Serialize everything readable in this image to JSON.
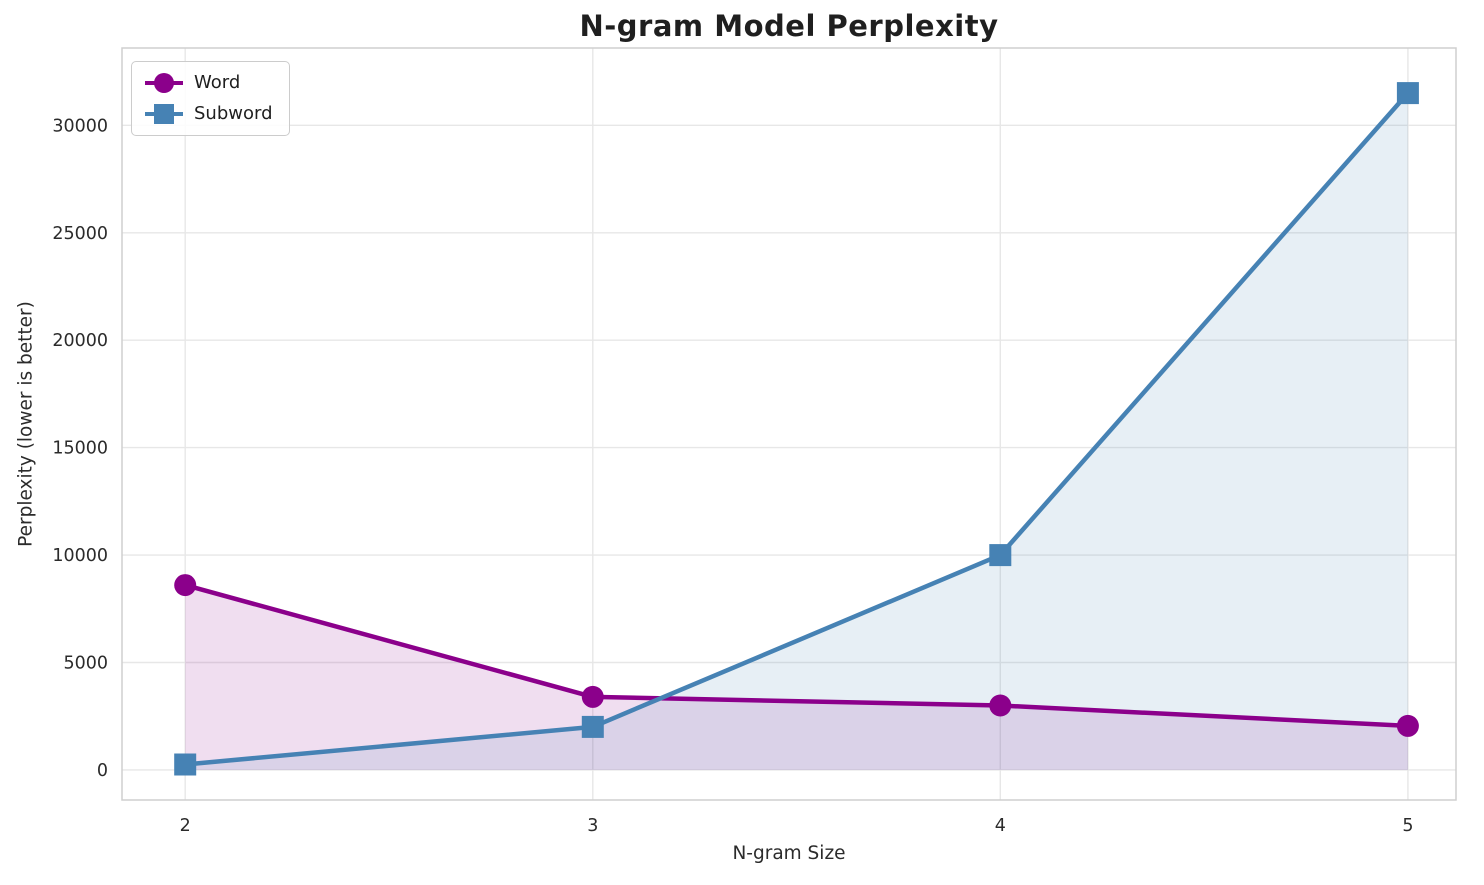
{
  "chart_data": {
    "type": "line",
    "title": "N-gram Model Perplexity",
    "xlabel": "N-gram Size",
    "ylabel": "Perplexity (lower is better)",
    "x": [
      2,
      3,
      4,
      5
    ],
    "series": [
      {
        "name": "Word",
        "values": [
          8600,
          3400,
          3000,
          2050
        ],
        "color": "#8B008B",
        "marker": "circle",
        "fill_opacity": 0.13
      },
      {
        "name": "Subword",
        "values": [
          250,
          2000,
          10000,
          31500
        ],
        "color": "#4682B4",
        "marker": "square",
        "fill_opacity": 0.13
      }
    ],
    "area_fill_to_zero": true,
    "xticks": [
      2,
      3,
      4,
      5
    ],
    "yticks": [
      0,
      5000,
      10000,
      15000,
      20000,
      25000,
      30000
    ],
    "xlim": [
      1.845,
      5.118
    ],
    "ylim": [
      -1400,
      33600
    ],
    "grid": true,
    "grid_color": "#e7e7e7",
    "frame_color": "#cfcfcf",
    "tick_label_color": "#2b2b2b",
    "background": "#ffffff",
    "legend_position": "upper left"
  }
}
